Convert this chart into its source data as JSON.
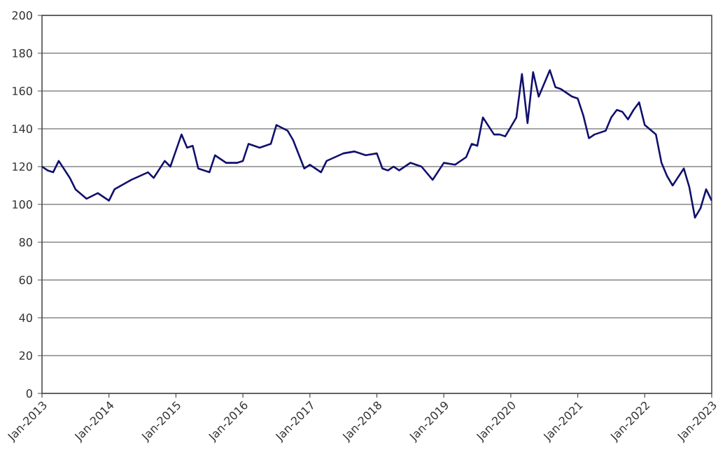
{
  "chart_data": {
    "type": "line",
    "x": [
      "2013-01",
      "2013-02",
      "2013-03",
      "2013-04",
      "2013-06",
      "2013-07",
      "2013-09",
      "2013-11",
      "2014-01",
      "2014-02",
      "2014-05",
      "2014-08",
      "2014-09",
      "2014-11",
      "2014-12",
      "2015-02",
      "2015-03",
      "2015-04",
      "2015-05",
      "2015-07",
      "2015-08",
      "2015-10",
      "2015-12",
      "2016-01",
      "2016-02",
      "2016-04",
      "2016-06",
      "2016-07",
      "2016-09",
      "2016-10",
      "2016-12",
      "2017-01",
      "2017-03",
      "2017-04",
      "2017-07",
      "2017-09",
      "2017-11",
      "2018-01",
      "2018-02",
      "2018-03",
      "2018-04",
      "2018-05",
      "2018-07",
      "2018-09",
      "2018-11",
      "2019-01",
      "2019-03",
      "2019-05",
      "2019-06",
      "2019-07",
      "2019-08",
      "2019-10",
      "2019-11",
      "2019-12",
      "2020-02",
      "2020-03",
      "2020-04",
      "2020-05",
      "2020-06",
      "2020-07",
      "2020-08",
      "2020-09",
      "2020-10",
      "2020-12",
      "2021-01",
      "2021-02",
      "2021-03",
      "2021-04",
      "2021-06",
      "2021-07",
      "2021-08",
      "2021-09",
      "2021-10",
      "2021-11",
      "2021-12",
      "2022-01",
      "2022-03",
      "2022-04",
      "2022-05",
      "2022-06",
      "2022-08",
      "2022-09",
      "2022-10",
      "2022-11",
      "2022-12",
      "2023-01"
    ],
    "series": [
      {
        "color": "#10106e",
        "values": [
          120,
          118,
          117,
          123,
          114,
          108,
          103,
          106,
          102,
          108,
          113,
          117,
          114,
          123,
          120,
          137,
          130,
          131,
          119,
          117,
          126,
          122,
          122,
          123,
          132,
          130,
          132,
          142,
          139,
          134,
          119,
          121,
          117,
          123,
          127,
          128,
          126,
          127,
          119,
          118,
          120,
          118,
          122,
          120,
          113,
          122,
          121,
          125,
          132,
          131,
          146,
          137,
          137,
          136,
          146,
          169,
          143,
          170,
          157,
          164,
          171,
          162,
          161,
          157,
          156,
          147,
          135,
          137,
          139,
          146,
          150,
          149,
          145,
          150,
          154,
          142,
          137,
          122,
          115,
          110,
          119,
          109,
          93,
          98,
          108,
          102
        ]
      }
    ],
    "xlim": [
      "2013-01",
      "2023-01"
    ],
    "xticks": [
      {
        "value": "2013-01",
        "label": "Jan-2013"
      },
      {
        "value": "2014-01",
        "label": "Jan-2014"
      },
      {
        "value": "2015-01",
        "label": "Jan-2015"
      },
      {
        "value": "2016-01",
        "label": "Jan-2016"
      },
      {
        "value": "2017-01",
        "label": "Jan-2017"
      },
      {
        "value": "2018-01",
        "label": "Jan-2018"
      },
      {
        "value": "2019-01",
        "label": "Jan-2019"
      },
      {
        "value": "2020-01",
        "label": "Jan-2020"
      },
      {
        "value": "2021-01",
        "label": "Jan-2021"
      },
      {
        "value": "2022-01",
        "label": "Jan-2022"
      },
      {
        "value": "2023-01",
        "label": "Jan-2023"
      }
    ],
    "ylim": [
      0,
      200
    ],
    "yticks": [
      0,
      20,
      40,
      60,
      80,
      100,
      120,
      140,
      160,
      180,
      200
    ],
    "grid": "y",
    "marker": "none",
    "line_style": "solid"
  }
}
